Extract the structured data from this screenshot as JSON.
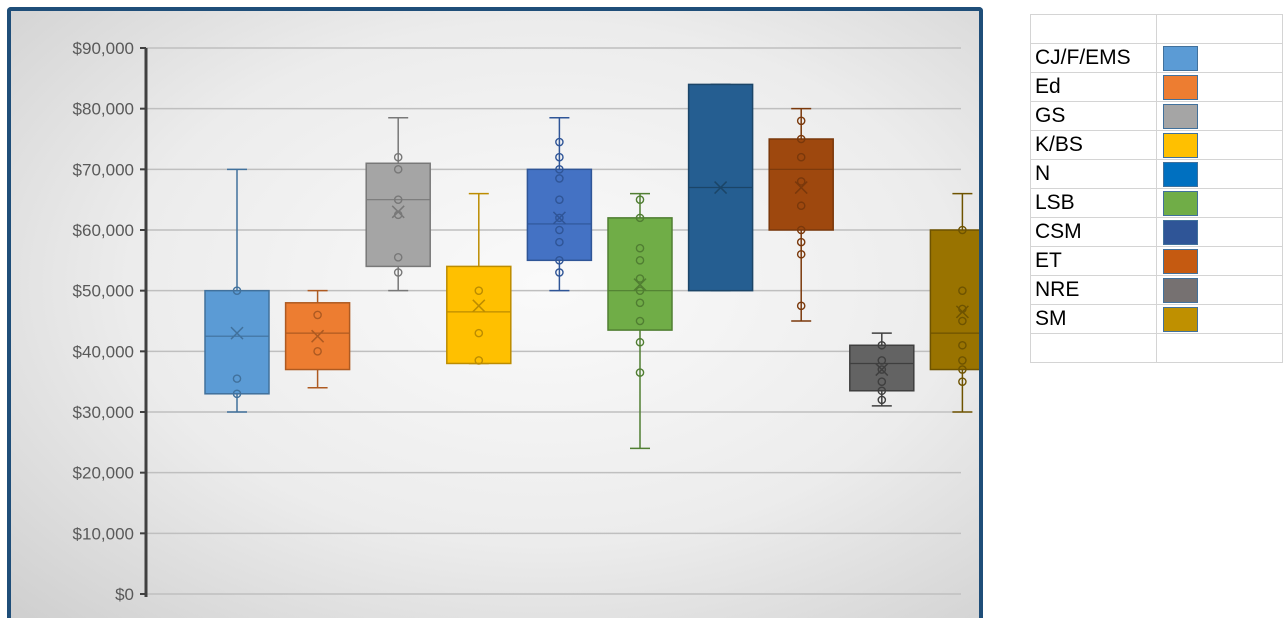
{
  "chart_data": {
    "type": "boxplot",
    "y_tick_labels": [
      "$0",
      "$10,000",
      "$20,000",
      "$30,000",
      "$40,000",
      "$50,000",
      "$60,000",
      "$70,000",
      "$80,000",
      "$90,000"
    ],
    "ylim": [
      0,
      90000
    ],
    "y_tick_step": 10000,
    "grid": true,
    "legend_position": "right",
    "series": [
      {
        "name": "CJ/F/EMS",
        "color": "#5b9bd5",
        "stroke": "#41719c",
        "min": 30000,
        "q1": 33000,
        "median": 42500,
        "mean": 43000,
        "q3": 50000,
        "max": 70000,
        "points": [
          33000,
          35500,
          50000
        ]
      },
      {
        "name": "Ed",
        "color": "#ed7d31",
        "stroke": "#ae5a21",
        "min": 34000,
        "q1": 37000,
        "median": 43000,
        "mean": 42500,
        "q3": 48000,
        "max": 50000,
        "points": [
          40000,
          46000
        ]
      },
      {
        "name": "GS",
        "color": "#a5a5a5",
        "stroke": "#787878",
        "min": 50000,
        "q1": 54000,
        "median": 65000,
        "mean": 63000,
        "q3": 71000,
        "max": 78500,
        "points": [
          53000,
          55500,
          62500,
          65000,
          70000,
          72000
        ]
      },
      {
        "name": "K/BS",
        "color": "#ffc000",
        "stroke": "#bc8c00",
        "min": 38000,
        "q1": 38000,
        "median": 46500,
        "mean": 47500,
        "q3": 54000,
        "max": 66000,
        "points": [
          38500,
          43000,
          50000
        ]
      },
      {
        "name": "N",
        "color": "#4472c4",
        "stroke": "#2f5597",
        "min": 50000,
        "q1": 55000,
        "median": 61000,
        "mean": 62000,
        "q3": 70000,
        "max": 78500,
        "points": [
          53000,
          55000,
          58000,
          60000,
          62000,
          65000,
          68500,
          70000,
          72000,
          74500
        ]
      },
      {
        "name": "LSB",
        "color": "#70ad47",
        "stroke": "#507e32",
        "min": 24000,
        "q1": 43500,
        "median": 50000,
        "mean": 51000,
        "q3": 62000,
        "max": 66000,
        "points": [
          36500,
          41500,
          45000,
          48000,
          50000,
          52000,
          55000,
          57000,
          62000,
          65000
        ]
      },
      {
        "name": "CSM",
        "color": "#255e91",
        "stroke": "#1b4568",
        "min": 50000,
        "q1": 50000,
        "median": 67000,
        "mean": 67000,
        "q3": 84000,
        "max": 84000,
        "points": []
      },
      {
        "name": "ET",
        "color": "#9e480e",
        "stroke": "#7a380b",
        "min": 45000,
        "q1": 60000,
        "median": 70000,
        "mean": 67000,
        "q3": 75000,
        "max": 80000,
        "points": [
          47500,
          56000,
          58000,
          60000,
          64000,
          68000,
          72000,
          75000,
          78000
        ]
      },
      {
        "name": "NRE",
        "color": "#636363",
        "stroke": "#3f3f3f",
        "min": 31000,
        "q1": 33500,
        "median": 38000,
        "mean": 37000,
        "q3": 41000,
        "max": 43000,
        "points": [
          32000,
          33500,
          35000,
          37000,
          38500,
          41000
        ]
      },
      {
        "name": "SM",
        "color": "#997300",
        "stroke": "#6e5300",
        "min": 30000,
        "q1": 37000,
        "median": 43000,
        "mean": 46500,
        "q3": 60000,
        "max": 66000,
        "points": [
          35000,
          37000,
          38500,
          41000,
          45000,
          47000,
          50000,
          60000
        ]
      }
    ]
  },
  "legend": {
    "items": [
      {
        "label": "CJ/F/EMS",
        "color": "#5b9bd5"
      },
      {
        "label": "Ed",
        "color": "#ed7d31"
      },
      {
        "label": "GS",
        "color": "#a5a5a5"
      },
      {
        "label": "K/BS",
        "color": "#ffc000"
      },
      {
        "label": "N",
        "color": "#0070c0"
      },
      {
        "label": "LSB",
        "color": "#70ad47"
      },
      {
        "label": "CSM",
        "color": "#2f5597"
      },
      {
        "label": "ET",
        "color": "#c55a11"
      },
      {
        "label": "NRE",
        "color": "#767171"
      },
      {
        "label": "SM",
        "color": "#bf9000"
      }
    ]
  },
  "colors": {
    "frame_border": "#1f4e79",
    "gridline": "#bfbfbf",
    "axis": "#404040",
    "tick_label": "#595959"
  }
}
